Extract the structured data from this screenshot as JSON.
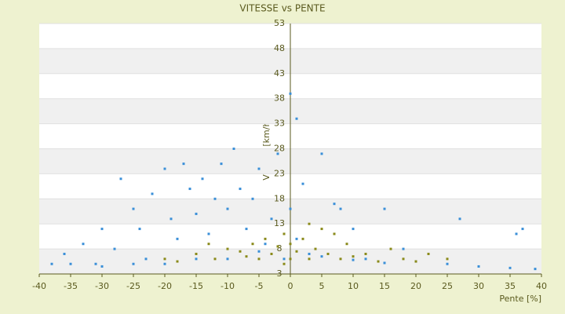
{
  "chart_data": {
    "type": "scatter",
    "title": "VITESSE vs PENTE",
    "x_label": "Pente [%]",
    "y_label": "Vitesse [km/h]",
    "xlim": [
      -40,
      40
    ],
    "xticks": [
      -40,
      -35,
      -30,
      -25,
      -20,
      -15,
      -10,
      -5,
      0,
      5,
      10,
      15,
      20,
      25,
      30,
      35,
      40
    ],
    "ylim": [
      3,
      53
    ],
    "yticks": [
      3,
      8,
      13,
      18,
      23,
      28,
      33,
      38,
      43,
      48,
      53
    ],
    "grid": true,
    "series": [
      {
        "color": "#3a8fd8",
        "x": [
          -38,
          -36,
          -33,
          -31,
          -30,
          -28,
          -27,
          -25,
          -24,
          -23,
          -22,
          -20,
          -19,
          -18,
          -17,
          -16,
          -15,
          -14,
          -13,
          -12,
          -11,
          -10,
          -9,
          -8,
          -7,
          -6,
          -5,
          -4,
          -3,
          -2,
          -1,
          0,
          0,
          1,
          1,
          2,
          3,
          5,
          7,
          8,
          10,
          12,
          15,
          18,
          20,
          25,
          27,
          30,
          35,
          36,
          37,
          39,
          -35,
          -20,
          -10,
          5,
          10,
          15,
          -30,
          -25,
          -15,
          -5
        ],
        "values": [
          5,
          7,
          9,
          5,
          12,
          8,
          22,
          16,
          12,
          6,
          19,
          24,
          14,
          10,
          25,
          20,
          15,
          22,
          11,
          18,
          25,
          16,
          28,
          20,
          12,
          18,
          24,
          9,
          14,
          27,
          6,
          39,
          16,
          34,
          10,
          21,
          7,
          27,
          17,
          16,
          12,
          6,
          16,
          8,
          5.5,
          5,
          14,
          4.5,
          4.2,
          11,
          12,
          4,
          5,
          5,
          6,
          6.5,
          5.8,
          5.2,
          4.5,
          5,
          6,
          7.5
        ]
      },
      {
        "color": "#8a8a1a",
        "x": [
          -15,
          -12,
          -10,
          -8,
          -6,
          -5,
          -4,
          -3,
          -2,
          -1,
          0,
          1,
          2,
          3,
          4,
          5,
          6,
          8,
          9,
          10,
          12,
          14,
          16,
          18,
          20,
          22,
          25,
          -20,
          -18,
          -13,
          -7,
          3,
          7,
          0,
          -1
        ],
        "values": [
          7,
          6,
          8,
          7.5,
          9,
          6,
          10,
          7,
          8.5,
          11,
          9,
          7.5,
          10,
          6,
          8,
          12,
          7,
          6,
          9,
          6.5,
          7,
          5.5,
          8,
          6,
          5.5,
          7,
          6,
          6,
          5.5,
          9,
          6.5,
          13,
          11,
          6,
          5
        ]
      }
    ]
  }
}
